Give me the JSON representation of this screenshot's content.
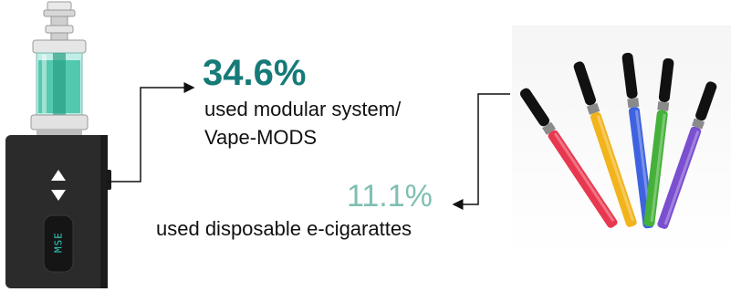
{
  "stats": {
    "mods": {
      "percent": "34.6%",
      "description_line1": "used modular system/",
      "description_line2": "Vape-MODS",
      "color": "#157a78"
    },
    "disposable": {
      "percent": "11.1%",
      "description": "used disposable e-cigarattes",
      "color": "#7fbfb2"
    }
  },
  "device": {
    "screen_text": "MSE",
    "screen_color": "#2fd0c0"
  },
  "ecig_colors": [
    "#e8384f",
    "#f2b41c",
    "#3f63e0",
    "#46b13a",
    "#7a4fd0"
  ]
}
